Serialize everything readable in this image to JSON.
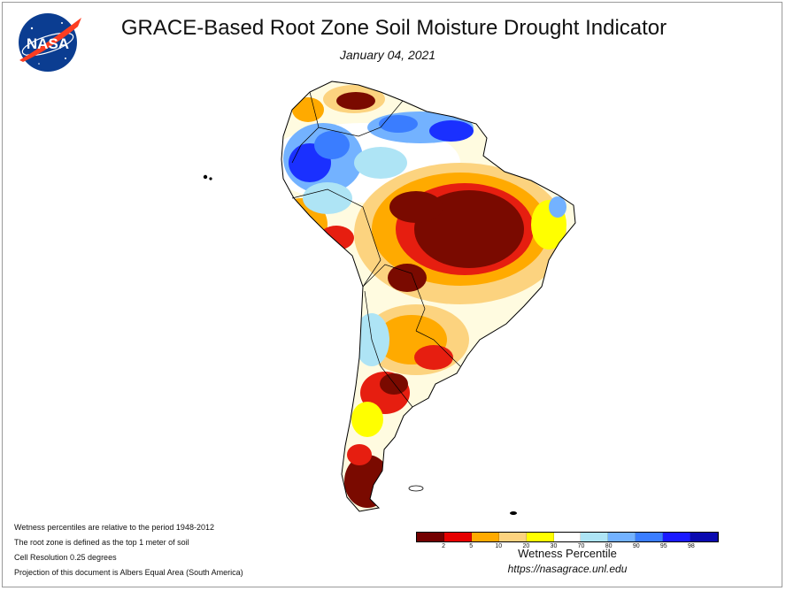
{
  "header": {
    "title": "GRACE-Based Root Zone Soil Moisture Drought Indicator",
    "date": "January 04, 2021",
    "logo_text": "NASA"
  },
  "map": {
    "region": "South America",
    "colors": {
      "ocean": "#ffffff",
      "border": "#000000",
      "brown": "#7a0a00",
      "red": "#e61e10",
      "orange": "#ffaa00",
      "tan": "#fcd37f",
      "yellow": "#ffff00",
      "white": "#ffffff",
      "light_blue": "#aee4f5",
      "sky_blue": "#73b2ff",
      "medium_blue": "#3a7dff",
      "blue": "#1a30ff",
      "dark_blue": "#0a0ab0"
    }
  },
  "notes": [
    "Wetness percentiles are relative to the period 1948-2012",
    "The root zone is defined as the top 1 meter of soil",
    "Cell Resolution 0.25 degrees",
    "Projection of this document is Albers Equal Area (South America)"
  ],
  "legend": {
    "title": "Wetness Percentile",
    "bins": [
      {
        "color": "#730000"
      },
      {
        "color": "#e60000"
      },
      {
        "color": "#ffaa00"
      },
      {
        "color": "#fcd37f"
      },
      {
        "color": "#ffff00"
      },
      {
        "color": "#ffffff"
      },
      {
        "color": "#aee4f5"
      },
      {
        "color": "#73b2ff"
      },
      {
        "color": "#3a7dff"
      },
      {
        "color": "#1a1aff"
      },
      {
        "color": "#0a0ab0"
      }
    ],
    "ticks": [
      "2",
      "5",
      "10",
      "20",
      "30",
      "70",
      "80",
      "90",
      "95",
      "98"
    ]
  },
  "source_url": "https://nasagrace.unl.edu"
}
